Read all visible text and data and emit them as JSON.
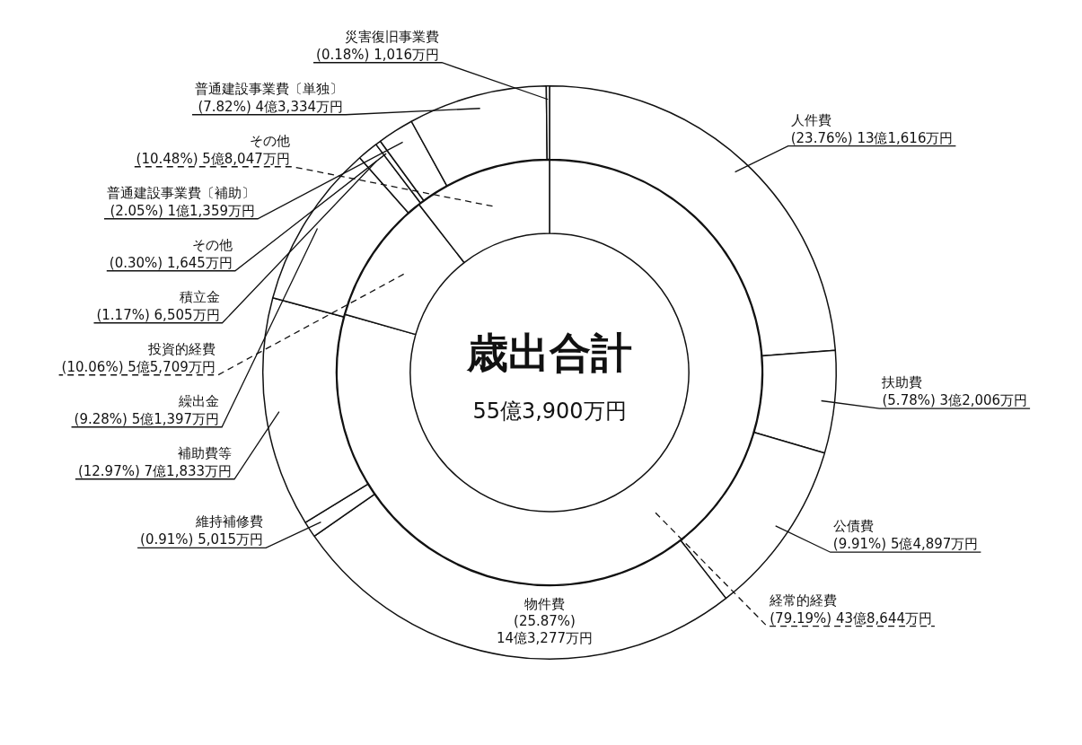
{
  "chart_data": [
    {
      "type": "donut",
      "categories": [
        "人件費",
        "扶助費",
        "公債費",
        "物件費",
        "維持補修費",
        "補助費等",
        "繰出金",
        "積立金",
        "その他",
        "普通建設事業費〔補助〕",
        "普通建設事業費〔単独〕",
        "災害復旧事業費"
      ],
      "values": [
        23.76,
        5.78,
        9.91,
        25.87,
        0.91,
        12.97,
        9.28,
        1.17,
        0.3,
        2.05,
        7.82,
        0.18
      ],
      "colors": [
        "#ffffff",
        "#ffffff",
        "#ffffff",
        "#ffffff",
        "#ffffff",
        "#ffffff",
        "#ffffff",
        "#ffffff",
        "#ffffff",
        "#ffffff",
        "#ffffff",
        "#ffffff"
      ],
      "value_labels": [
        "(23.76%) 13億1,616万円",
        "(5.78%) 3億2,006万円",
        "(9.91%) 5億4,897万円",
        "(25.87%) 14億3,277万円",
        "(0.91%) 5,015万円",
        "(12.97%) 7億1,833万円",
        "(9.28%) 5億1,397万円",
        "(1.17%) 6,505万円",
        "(0.30%) 1,645万円",
        "(2.05%) 1億1,359万円",
        "(7.82%) 4億3,334万円",
        "(0.18%) 1,016万円"
      ]
    },
    {
      "type": "donut",
      "title": "歳出合計",
      "subtitle": "55億3,900万円",
      "categories": [
        "経常的経費",
        "投資的経費",
        "その他"
      ],
      "values": [
        79.19,
        10.06,
        10.48
      ],
      "colors": [
        "#ffffff",
        "#ffffff",
        "#ffffff"
      ],
      "value_labels": [
        "(79.19%) 43億8,644万円",
        "(10.06%) 5億5,709万円",
        "(10.48%) 5億8,047万円"
      ]
    }
  ]
}
